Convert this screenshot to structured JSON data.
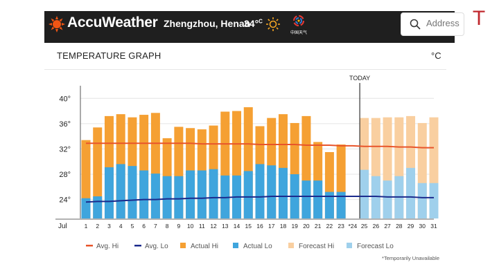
{
  "app": {
    "logo_text": "AccuWeather",
    "location": "Zhengzhou, Henan",
    "current_temp": "34°",
    "current_unit": "C"
  },
  "cma_logo": {
    "text": "中国天气"
  },
  "search": {
    "placeholder": "Address"
  },
  "section": {
    "title": "TEMPERATURE GRAPH",
    "unit": "°C"
  },
  "colors": {
    "actual_hi": "#f5a033",
    "actual_lo": "#3fa5dd",
    "forecast_hi": "#f9cfa0",
    "forecast_lo": "#9fd0ec",
    "avg_hi": "#e8542a",
    "avg_lo": "#1b2a8c",
    "header": "#1f1f1f"
  },
  "chart_data": {
    "type": "bar",
    "month_label": "Jul",
    "today_label": "TODAY",
    "today_day": 25,
    "footnote": "*Temporarily Unavailable",
    "ylim": [
      21,
      42
    ],
    "y_ticks": [
      24,
      28,
      32,
      36,
      40
    ],
    "y_tick_labels": [
      "24°",
      "28°",
      "32°",
      "36°",
      "40°"
    ],
    "days": [
      "1",
      "2",
      "3",
      "4",
      "5",
      "6",
      "7",
      "8",
      "9",
      "10",
      "11",
      "12",
      "13",
      "14",
      "15",
      "16",
      "17",
      "18",
      "19",
      "20",
      "21",
      "22",
      "23",
      "*24",
      "25",
      "26",
      "27",
      "28",
      "29",
      "30",
      "31"
    ],
    "series": [
      {
        "name": "Actual Hi",
        "values": [
          33.4,
          35.4,
          37.2,
          37.5,
          37.0,
          37.4,
          37.7,
          33.7,
          35.5,
          35.3,
          35.1,
          35.7,
          37.9,
          38.0,
          38.6,
          35.6,
          36.9,
          37.5,
          36.1,
          37.2,
          33.1,
          31.5,
          32.7,
          null,
          null,
          null,
          null,
          null,
          null,
          null,
          null
        ]
      },
      {
        "name": "Actual Lo",
        "values": [
          24.2,
          24.5,
          29.1,
          29.6,
          29.3,
          28.6,
          28.1,
          27.7,
          27.7,
          28.6,
          28.6,
          28.8,
          27.8,
          27.8,
          28.5,
          29.6,
          29.4,
          29.0,
          28.0,
          27.0,
          27.0,
          25.2,
          25.2,
          null,
          null,
          null,
          null,
          null,
          null,
          null,
          null
        ]
      },
      {
        "name": "Forecast Hi",
        "values": [
          null,
          null,
          null,
          null,
          null,
          null,
          null,
          null,
          null,
          null,
          null,
          null,
          null,
          null,
          null,
          null,
          null,
          null,
          null,
          null,
          null,
          null,
          null,
          null,
          36.9,
          36.9,
          37.0,
          37.0,
          37.2,
          36.1,
          37.0
        ]
      },
      {
        "name": "Forecast Lo",
        "values": [
          null,
          null,
          null,
          null,
          null,
          null,
          null,
          null,
          null,
          null,
          null,
          null,
          null,
          null,
          null,
          null,
          null,
          null,
          null,
          null,
          null,
          null,
          null,
          null,
          28.7,
          27.7,
          27.0,
          27.7,
          29.0,
          26.6,
          26.6
        ]
      },
      {
        "name": "Avg. Hi",
        "values": [
          32.9,
          32.9,
          32.9,
          32.9,
          32.9,
          32.9,
          32.9,
          32.9,
          32.9,
          32.9,
          32.8,
          32.8,
          32.8,
          32.8,
          32.8,
          32.7,
          32.7,
          32.7,
          32.7,
          32.6,
          32.6,
          32.6,
          32.5,
          32.5,
          32.4,
          32.4,
          32.4,
          32.3,
          32.3,
          32.2,
          32.2
        ]
      },
      {
        "name": "Avg. Lo",
        "values": [
          23.6,
          23.7,
          23.7,
          23.8,
          23.9,
          24.0,
          24.0,
          24.1,
          24.1,
          24.2,
          24.2,
          24.3,
          24.3,
          24.4,
          24.4,
          24.4,
          24.5,
          24.5,
          24.5,
          24.5,
          24.5,
          24.5,
          24.5,
          24.5,
          24.5,
          24.5,
          24.4,
          24.4,
          24.4,
          24.3,
          24.3
        ]
      }
    ],
    "legend": [
      "Avg. Hi",
      "Avg. Lo",
      "Actual Hi",
      "Actual Lo",
      "Forecast Hi",
      "Forecast Lo"
    ],
    "legend_placement": "bottom",
    "grid": true
  },
  "brand_mark": {
    "letter": "T",
    "color": "#c0282e"
  }
}
